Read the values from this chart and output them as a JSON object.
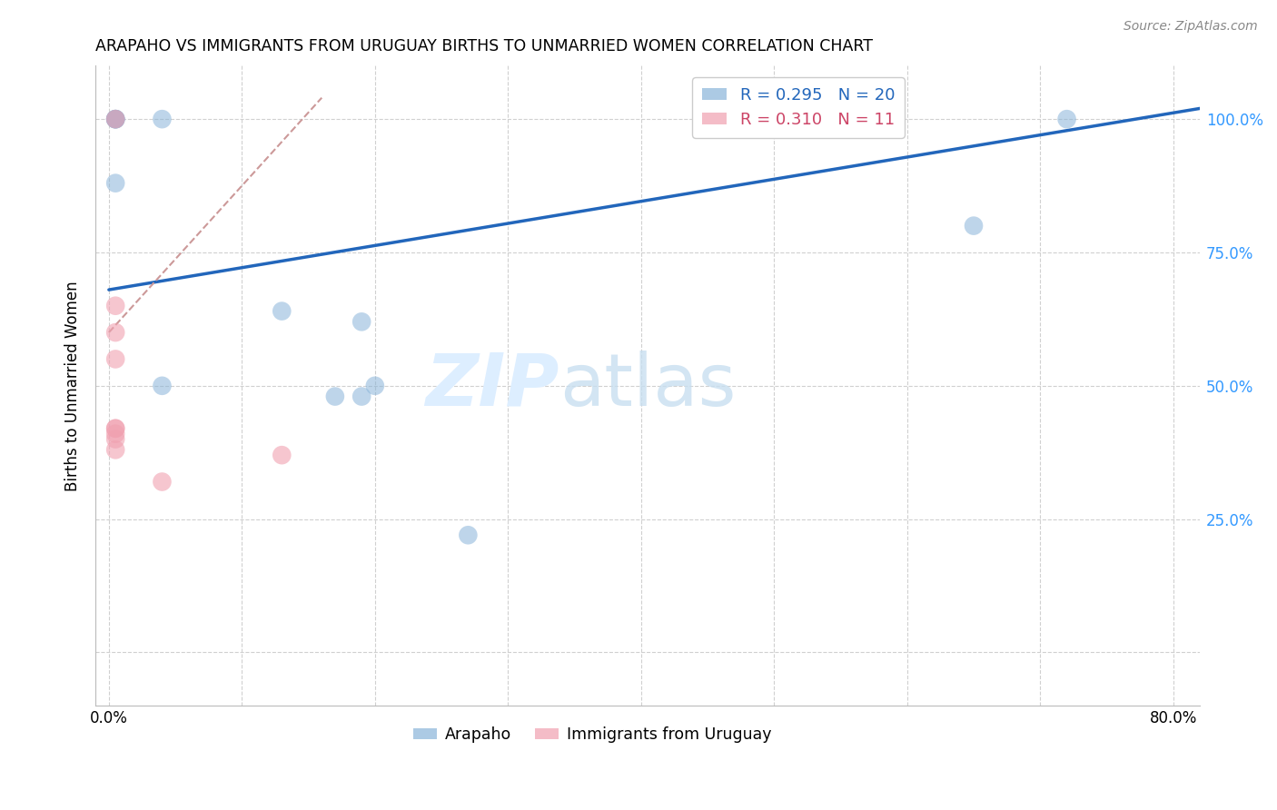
{
  "title": "ARAPAHO VS IMMIGRANTS FROM URUGUAY BIRTHS TO UNMARRIED WOMEN CORRELATION CHART",
  "source": "Source: ZipAtlas.com",
  "ylabel": "Births to Unmarried Women",
  "x_ticks": [
    0.0,
    0.1,
    0.2,
    0.3,
    0.4,
    0.5,
    0.6,
    0.7,
    0.8
  ],
  "y_ticks": [
    0.0,
    0.25,
    0.5,
    0.75,
    1.0
  ],
  "y_tick_labels_right": [
    "",
    "25.0%",
    "50.0%",
    "75.0%",
    "100.0%"
  ],
  "xlim": [
    -0.01,
    0.82
  ],
  "ylim": [
    -0.1,
    1.1
  ],
  "arapaho_x": [
    0.005,
    0.005,
    0.005,
    0.005,
    0.005,
    0.04,
    0.04,
    0.13,
    0.17,
    0.19,
    0.19,
    0.2,
    0.27,
    0.65,
    0.72
  ],
  "arapaho_y": [
    1.0,
    1.0,
    1.0,
    1.0,
    0.88,
    1.0,
    0.5,
    0.64,
    0.48,
    0.62,
    0.48,
    0.5,
    0.22,
    0.8,
    1.0
  ],
  "uruguay_x": [
    0.005,
    0.005,
    0.005,
    0.005,
    0.005,
    0.005,
    0.005,
    0.005,
    0.005,
    0.04,
    0.13
  ],
  "uruguay_y": [
    1.0,
    0.65,
    0.6,
    0.55,
    0.42,
    0.42,
    0.41,
    0.4,
    0.38,
    0.32,
    0.37
  ],
  "blue_R": 0.295,
  "blue_N": 20,
  "pink_R": 0.31,
  "pink_N": 11,
  "blue_line_x": [
    0.0,
    0.82
  ],
  "blue_line_y": [
    0.68,
    1.02
  ],
  "pink_line_x": [
    0.0,
    0.16
  ],
  "pink_line_y": [
    0.6,
    1.04
  ],
  "blue_color": "#89b4d9",
  "pink_color": "#f0a0b0",
  "blue_line_color": "#2266bb",
  "pink_line_color": "#cc9999",
  "grid_color": "#d0d0d0",
  "watermark_zip": "ZIP",
  "watermark_atlas": "atlas",
  "watermark_color": "#ddeeff"
}
